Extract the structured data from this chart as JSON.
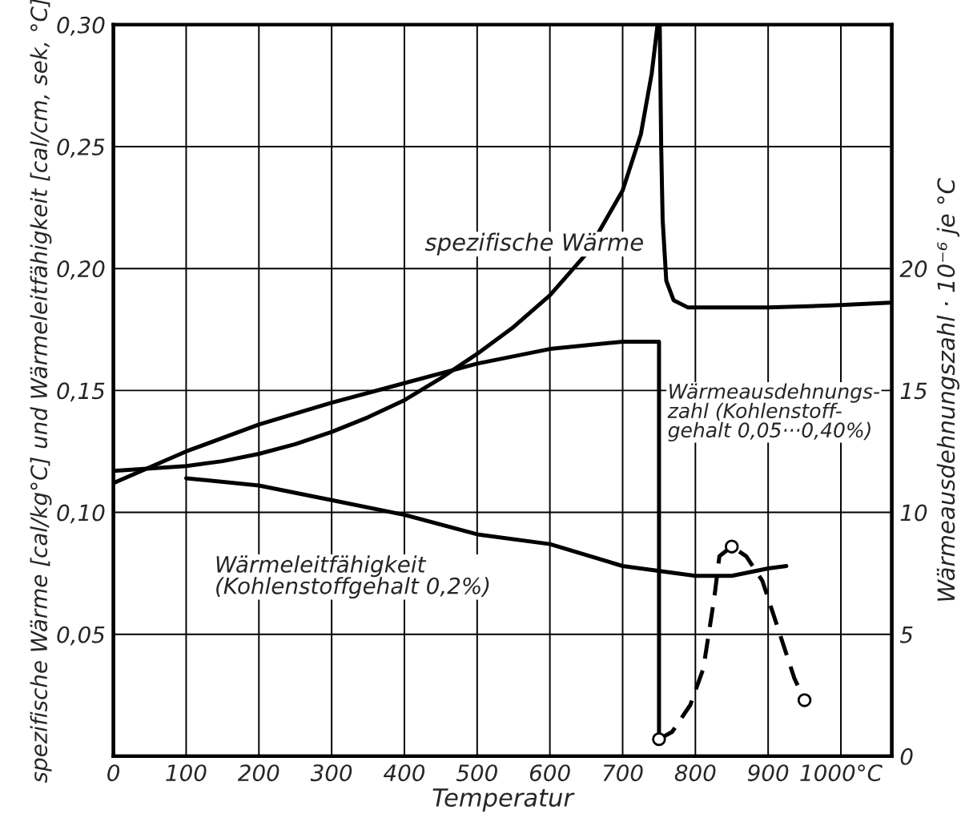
{
  "chart_data": {
    "type": "line",
    "xlabel": "Temperatur",
    "ylabel": "spezifische Wärme [cal/kg°C] und Wärmeleitfähigkeit [cal/cm, sek, °C]",
    "y2label": "Wärmeausdehnungszahl · 10⁻⁶ je °C",
    "xlim": [
      0,
      1070
    ],
    "xticks": [
      0,
      100,
      200,
      300,
      400,
      500,
      600,
      700,
      800,
      900,
      {
        "value": 1000,
        "label": "1000°C"
      }
    ],
    "ylim": [
      0,
      0.3
    ],
    "yticks": [
      {
        "value": 0.05,
        "label": "0,05"
      },
      {
        "value": 0.1,
        "label": "0,10"
      },
      {
        "value": 0.15,
        "label": "0,15"
      },
      {
        "value": 0.2,
        "label": "0,20"
      },
      {
        "value": 0.25,
        "label": "0,25"
      },
      {
        "value": 0.3,
        "label": "0,30"
      }
    ],
    "y2lim": [
      0,
      30
    ],
    "y2ticks": [
      0,
      5,
      10,
      15,
      20
    ],
    "grid": true,
    "legend": false,
    "series": [
      {
        "color": "#000000",
        "line_style": "solid",
        "x": [
          0,
          50,
          100,
          150,
          200,
          250,
          300,
          350,
          400,
          450,
          500,
          550,
          600,
          650,
          700,
          725,
          740,
          748,
          751,
          753,
          755,
          760,
          770,
          790,
          900,
          1000,
          1068
        ],
        "values": [
          0.117,
          0.118,
          0.119,
          0.121,
          0.124,
          0.128,
          0.133,
          0.139,
          0.146,
          0.155,
          0.165,
          0.176,
          0.189,
          0.206,
          0.232,
          0.255,
          0.28,
          0.3,
          0.3,
          0.25,
          0.22,
          0.195,
          0.187,
          0.184,
          0.184,
          0.185,
          0.186
        ]
      },
      {
        "color": "#000000",
        "line_style": "solid",
        "x": [
          100,
          200,
          300,
          400,
          500,
          600,
          700,
          800,
          850,
          900,
          925
        ],
        "values": [
          0.114,
          0.111,
          0.105,
          0.099,
          0.091,
          0.087,
          0.078,
          0.074,
          0.074,
          0.077,
          0.078
        ]
      },
      {
        "axis": "y2",
        "color": "#000000",
        "line_style": "solid",
        "x": [
          0,
          100,
          200,
          300,
          400,
          500,
          600,
          700,
          750,
          750
        ],
        "values": [
          11.2,
          12.5,
          13.6,
          14.5,
          15.3,
          16.1,
          16.7,
          17.0,
          17.0,
          0.7
        ]
      },
      {
        "axis": "y2",
        "color": "#000000",
        "line_style": "dashed",
        "x": [
          750,
          768,
          793,
          811,
          826,
          833,
          850,
          870,
          892,
          914,
          936,
          950
        ],
        "values": [
          0.7,
          1.0,
          2.1,
          3.6,
          6.5,
          8.2,
          8.6,
          8.2,
          7.2,
          5.2,
          3.2,
          2.3
        ]
      },
      {
        "type": "scatter",
        "axis": "y2",
        "color": "#000000",
        "marker": "circle",
        "x": [
          750,
          850,
          950
        ],
        "values": [
          0.7,
          8.6,
          2.3
        ]
      }
    ],
    "annotations": [
      "spezifische Wärme",
      "Wärmeleitfähigkeit\n(Kohlenstoffgehalt 0,2%)",
      "Wärmeausdehnungs-\nzahl (Kohlenstoff-\ngehalt 0,05···0,40%)"
    ]
  }
}
